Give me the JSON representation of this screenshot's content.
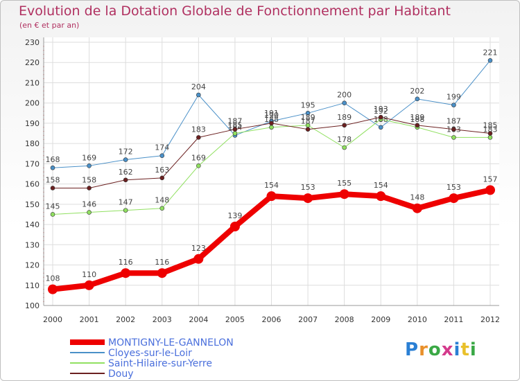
{
  "title": "Evolution de la Dotation Globale de Fonctionnement par Habitant",
  "subtitle": "(en € et par an)",
  "logo": "Proxiti",
  "chart_data": {
    "type": "line",
    "x": [
      "2000",
      "2001",
      "2002",
      "2003",
      "2004",
      "2005",
      "2006",
      "2007",
      "2008",
      "2009",
      "2010",
      "2011",
      "2012"
    ],
    "ylim": [
      100,
      230
    ],
    "yticks": [
      100,
      110,
      120,
      130,
      140,
      150,
      160,
      170,
      180,
      190,
      200,
      210,
      220,
      230
    ],
    "grid": true,
    "series": [
      {
        "name": "MONTIGNY-LE-GANNELON",
        "color": "#ee0000",
        "width": 8,
        "marker": 7,
        "values": [
          108,
          110,
          116,
          116,
          123,
          139,
          154,
          153,
          155,
          154,
          148,
          153,
          157
        ]
      },
      {
        "name": "Cloyes-sur-le-Loir",
        "color": "#4a90c8",
        "width": 1,
        "marker": 3,
        "values": [
          168,
          169,
          172,
          174,
          204,
          184,
          191,
          195,
          200,
          188,
          202,
          199,
          221
        ]
      },
      {
        "name": "Saint-Hilaire-sur-Yerre",
        "color": "#90e060",
        "width": 1,
        "marker": 3,
        "values": [
          145,
          146,
          147,
          148,
          169,
          185,
          188,
          189,
          178,
          192,
          188,
          183,
          183
        ]
      },
      {
        "name": "Douy",
        "color": "#6b2020",
        "width": 1,
        "marker": 3,
        "values": [
          158,
          158,
          162,
          163,
          183,
          187,
          190,
          187,
          189,
          193,
          189,
          187,
          185
        ]
      }
    ]
  }
}
